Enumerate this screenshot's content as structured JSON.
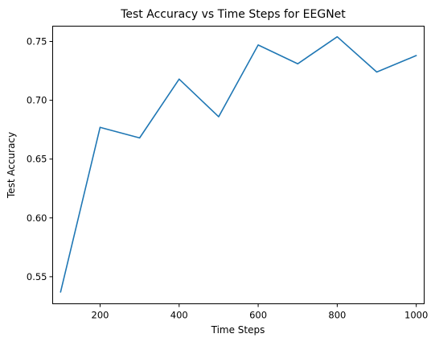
{
  "chart_data": {
    "type": "line",
    "title": "Test Accuracy vs Time Steps for EEGNet",
    "xlabel": "Time Steps",
    "ylabel": "Test Accuracy",
    "xlim": [
      80,
      1020
    ],
    "ylim": [
      0.527,
      0.763
    ],
    "x_ticks": [
      200,
      400,
      600,
      800,
      1000
    ],
    "x_tick_labels": [
      "200",
      "400",
      "600",
      "800",
      "1000"
    ],
    "y_ticks": [
      0.55,
      0.6,
      0.65,
      0.7,
      0.75
    ],
    "y_tick_labels": [
      "0.55",
      "0.60",
      "0.65",
      "0.70",
      "0.75"
    ],
    "grid": false,
    "series": [
      {
        "color": "#1f77b4",
        "x": [
          100,
          200,
          300,
          400,
          500,
          600,
          700,
          800,
          900,
          1000
        ],
        "y": [
          0.537,
          0.677,
          0.668,
          0.718,
          0.686,
          0.747,
          0.731,
          0.754,
          0.724,
          0.738
        ]
      }
    ]
  }
}
